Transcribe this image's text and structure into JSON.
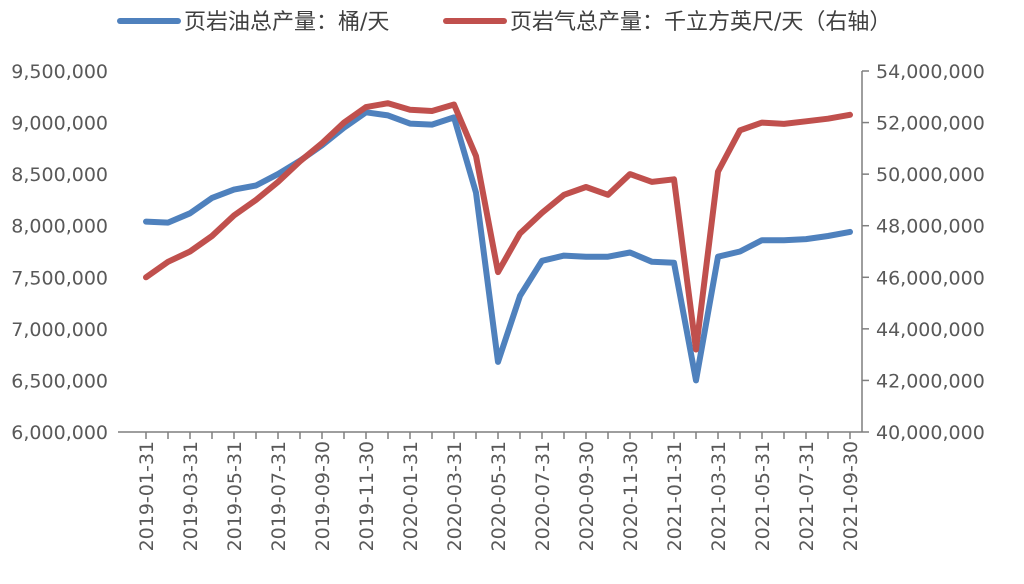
{
  "chart_data": {
    "type": "line",
    "title": "",
    "x": [
      "2019-01-31",
      "2019-02-28",
      "2019-03-31",
      "2019-04-30",
      "2019-05-31",
      "2019-06-30",
      "2019-07-31",
      "2019-08-31",
      "2019-09-30",
      "2019-10-31",
      "2019-11-30",
      "2019-12-31",
      "2020-01-31",
      "2020-02-29",
      "2020-03-31",
      "2020-04-30",
      "2020-05-31",
      "2020-06-30",
      "2020-07-31",
      "2020-08-31",
      "2020-09-30",
      "2020-10-31",
      "2020-11-30",
      "2020-12-31",
      "2021-01-31",
      "2021-02-28",
      "2021-03-31",
      "2021-04-30",
      "2021-05-31",
      "2021-06-30",
      "2021-07-31",
      "2021-08-31",
      "2021-09-30"
    ],
    "x_tick_labels": [
      "2019-01-31",
      "2019-03-31",
      "2019-05-31",
      "2019-07-31",
      "2019-09-30",
      "2019-11-30",
      "2020-01-31",
      "2020-03-31",
      "2020-05-31",
      "2020-07-31",
      "2020-09-30",
      "2020-11-30",
      "2021-01-31",
      "2021-03-31",
      "2021-05-31",
      "2021-07-31",
      "2021-09-30"
    ],
    "y_left": {
      "range": [
        6000000,
        9500000
      ],
      "tick_labels": [
        "6,000,000",
        "6,500,000",
        "7,000,000",
        "7,500,000",
        "8,000,000",
        "8,500,000",
        "9,000,000",
        "9,500,000"
      ]
    },
    "y_right": {
      "range": [
        40000000,
        54000000
      ],
      "tick_labels": [
        "40,000,000",
        "42,000,000",
        "44,000,000",
        "46,000,000",
        "48,000,000",
        "50,000,000",
        "52,000,000",
        "54,000,000"
      ]
    },
    "legend_position": "top",
    "grid": false,
    "series": [
      {
        "name": "页岩油总产量：桶/天",
        "axis": "left",
        "color": "#4f81bd",
        "values": [
          8040000,
          8030000,
          8120000,
          8270000,
          8350000,
          8390000,
          8500000,
          8630000,
          8780000,
          8950000,
          9100000,
          9070000,
          8990000,
          8980000,
          9050000,
          8320000,
          6680000,
          7320000,
          7660000,
          7710000,
          7700000,
          7700000,
          7740000,
          7650000,
          7640000,
          6500000,
          7700000,
          7750000,
          7860000,
          7860000,
          7870000,
          7900000,
          7940000
        ]
      },
      {
        "name": "页岩气总产量：千立方英尺/天（右轴）",
        "axis": "right",
        "color": "#c0504d",
        "values": [
          46000000,
          46600000,
          47000000,
          47600000,
          48400000,
          49000000,
          49700000,
          50500000,
          51200000,
          52000000,
          52600000,
          52750000,
          52500000,
          52450000,
          52700000,
          50700000,
          46200000,
          47700000,
          48500000,
          49200000,
          49500000,
          49200000,
          50000000,
          49700000,
          49800000,
          43200000,
          50100000,
          51700000,
          52000000,
          51950000,
          52050000,
          52150000,
          52300000
        ]
      }
    ]
  }
}
